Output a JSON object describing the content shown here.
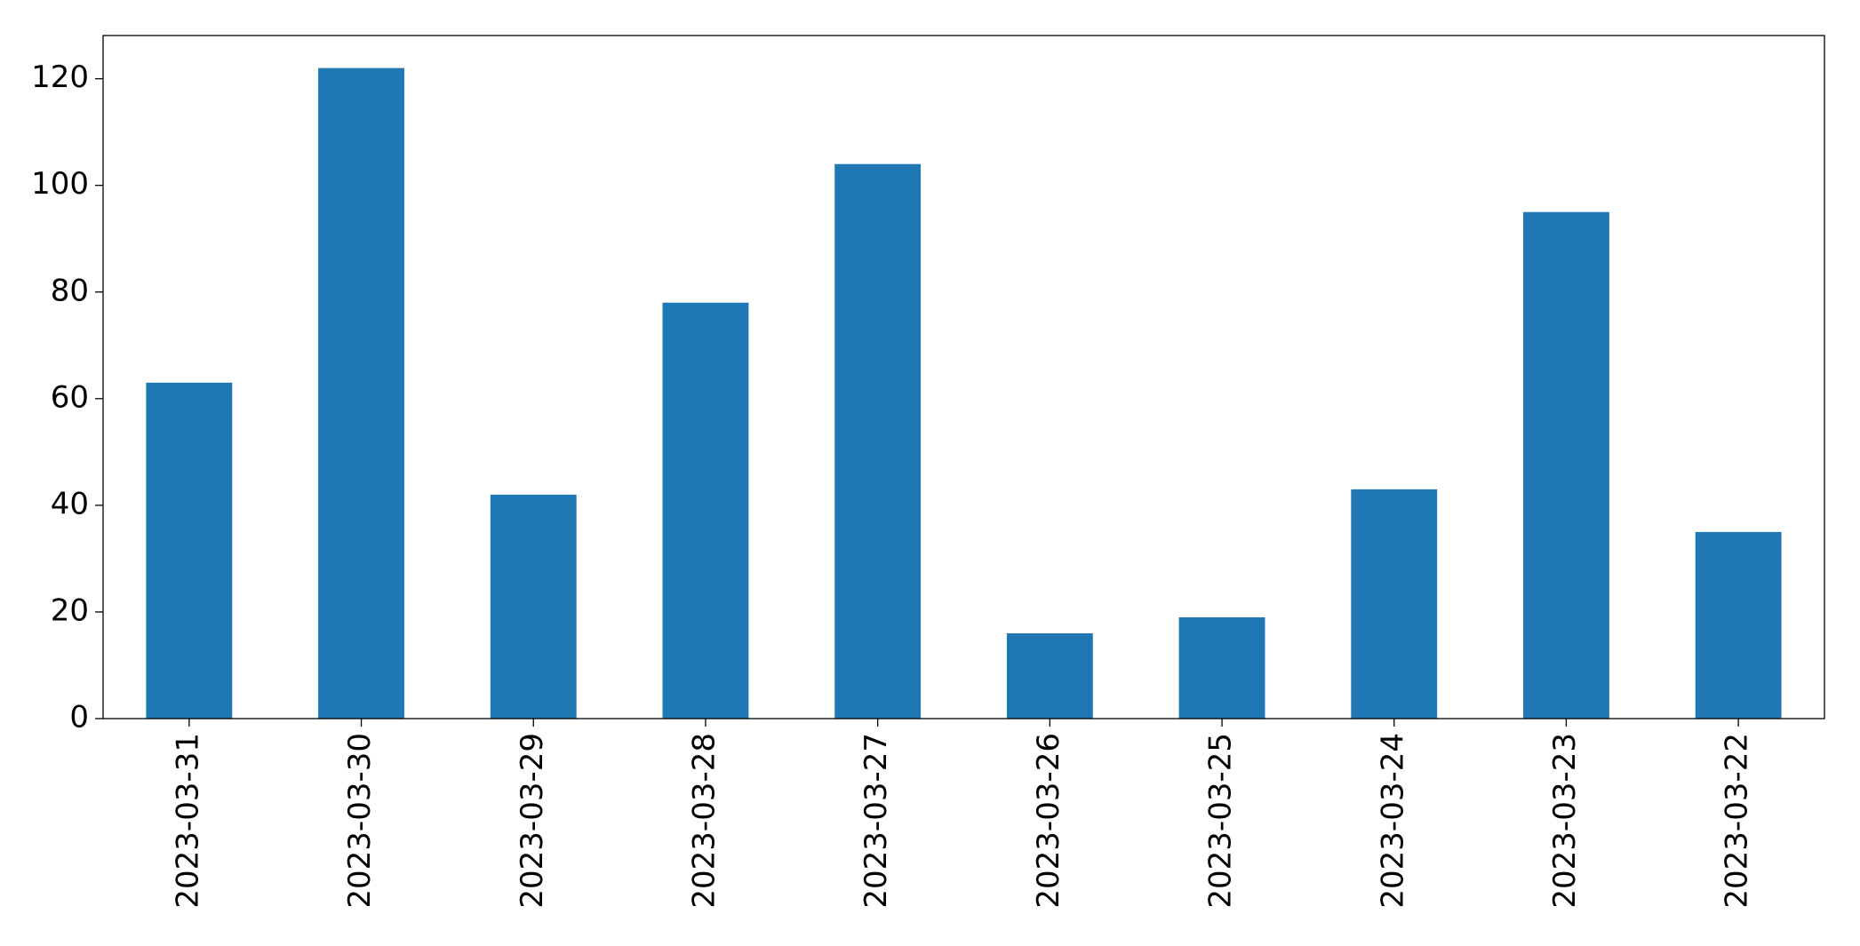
{
  "chart_data": {
    "type": "bar",
    "categories": [
      "2023-03-31",
      "2023-03-30",
      "2023-03-29",
      "2023-03-28",
      "2023-03-27",
      "2023-03-26",
      "2023-03-25",
      "2023-03-24",
      "2023-03-23",
      "2023-03-22"
    ],
    "values": [
      63,
      122,
      42,
      78,
      104,
      16,
      19,
      43,
      95,
      35
    ],
    "color": "#1f77b4",
    "ylim": [
      0,
      128.1
    ],
    "yticks": [
      0,
      20,
      40,
      60,
      80,
      100,
      120
    ],
    "grid": false
  }
}
